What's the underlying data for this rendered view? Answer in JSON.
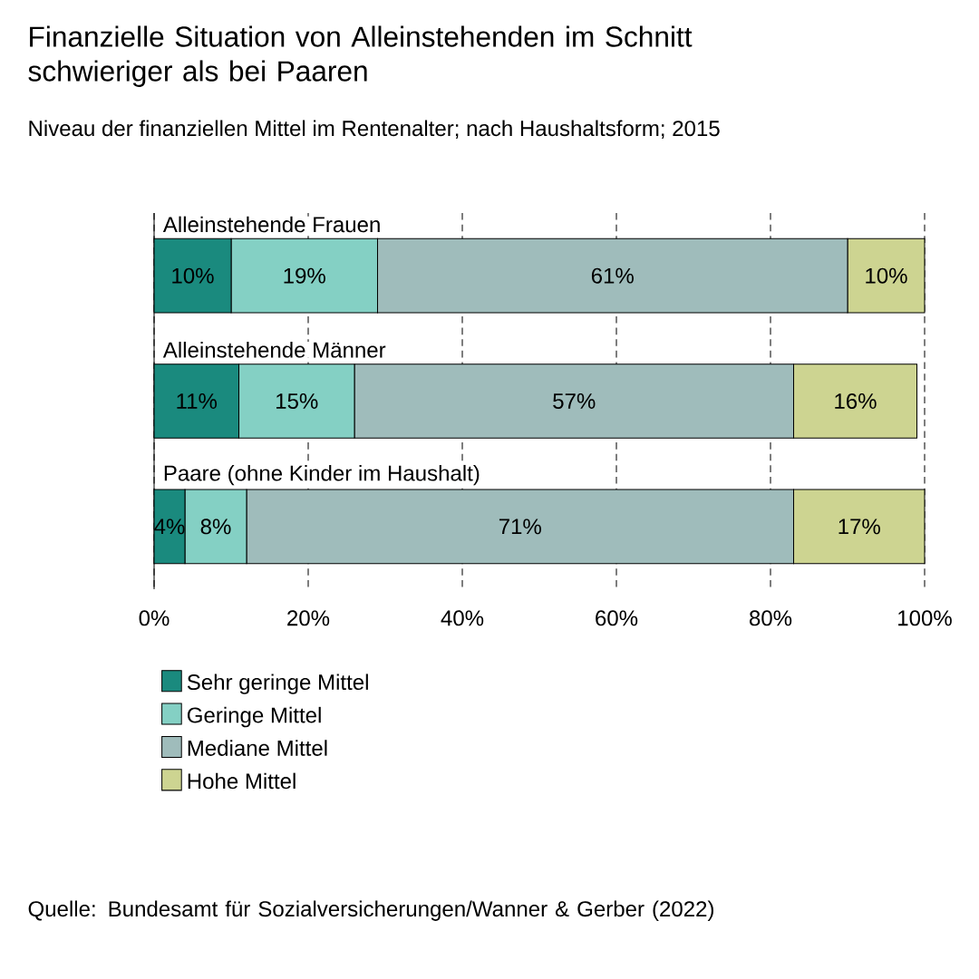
{
  "chart_data": {
    "type": "bar",
    "orientation": "horizontal",
    "stacked": true,
    "title": "Finanzielle Situation von Alleinstehenden im Schnitt schwieriger als bei Paaren",
    "subtitle": "Niveau der finanziellen Mittel im Rentenalter; nach Haushaltsform; 2015",
    "categories": [
      "Alleinstehende Frauen",
      "Alleinstehende Männer",
      "Paare (ohne Kinder im Haushalt)"
    ],
    "series": [
      {
        "name": "Sehr geringe Mittel",
        "color": "#1a8a7e",
        "values": [
          10,
          11,
          4
        ],
        "value_labels": [
          "10%",
          "11%",
          "4%"
        ]
      },
      {
        "name": "Geringe Mittel",
        "color": "#84d0c4",
        "values": [
          19,
          15,
          8
        ],
        "value_labels": [
          "19%",
          "15%",
          "8%"
        ]
      },
      {
        "name": "Mediane Mittel",
        "color": "#9fbcbb",
        "values": [
          61,
          57,
          71
        ],
        "value_labels": [
          "61%",
          "57%",
          "71%"
        ]
      },
      {
        "name": "Hohe Mittel",
        "color": "#cdd491",
        "values": [
          10,
          16,
          17
        ],
        "value_labels": [
          "10%",
          "16%",
          "17%"
        ]
      }
    ],
    "xlim": [
      0,
      100
    ],
    "xticks": [
      {
        "value": 0,
        "label": "0%"
      },
      {
        "value": 20,
        "label": "20%"
      },
      {
        "value": 40,
        "label": "40%"
      },
      {
        "value": 60,
        "label": "60%"
      },
      {
        "value": 80,
        "label": "80%"
      },
      {
        "value": 100,
        "label": "100%"
      }
    ],
    "grid": "x",
    "legend": "bottom",
    "annotations": [
      "Quelle: Bundesamt für Sozialversicherungen/Wanner & Gerber (2022)"
    ]
  }
}
